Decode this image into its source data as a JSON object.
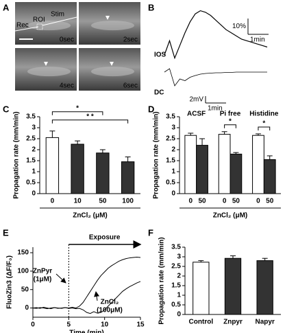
{
  "chart_data": [
    {
      "type": "image",
      "panel": "A",
      "frames": [
        "0sec",
        "2sec",
        "4sec",
        "6sec"
      ],
      "labels": [
        "Rec",
        "ROI",
        "Stim"
      ]
    },
    {
      "type": "trace",
      "panel": "B",
      "x": [
        0,
        0.25,
        0.5,
        0.75,
        1,
        1.25,
        1.5,
        1.75,
        2,
        2.25,
        2.5,
        2.75,
        3,
        3.25,
        3.5,
        3.75,
        4,
        4.25,
        4.5,
        4.75,
        5
      ],
      "series": [
        {
          "name": "IOS",
          "values": [
            0,
            9,
            -2,
            6,
            14,
            21,
            26,
            28,
            27,
            25,
            22,
            19,
            16,
            14,
            12,
            10,
            9,
            8,
            7,
            6,
            5
          ],
          "scale": {
            "value": 10,
            "label": "10%"
          },
          "time_scale": {
            "value": 1,
            "label": "1min"
          }
        },
        {
          "name": "DC",
          "values": [
            0,
            1,
            -4,
            -2,
            -2.5,
            -1.5,
            -1,
            -0.6,
            -0.4,
            -0.3,
            -0.2,
            -0.2,
            -0.1,
            -0.1,
            0,
            0,
            0,
            0,
            0,
            0,
            0
          ],
          "scale": {
            "value": 2,
            "label": "2mV"
          },
          "time_scale": {
            "value": 1,
            "label": "1min"
          }
        }
      ]
    },
    {
      "type": "bar",
      "panel": "C",
      "ylabel": "Propagation rate (mm/min)",
      "xlabel": "ZnCl₂ (μM)",
      "categories": [
        "0",
        "10",
        "50",
        "100"
      ],
      "values": [
        2.55,
        2.25,
        1.85,
        1.45
      ],
      "errors": [
        0.3,
        0.15,
        0.15,
        0.22
      ],
      "colors": [
        "#ffffff",
        "#333333",
        "#333333",
        "#333333"
      ],
      "ylim": [
        0,
        3.5
      ],
      "yticks": [
        0,
        0.5,
        1,
        1.5,
        2,
        2.5,
        3,
        3.5
      ],
      "annotations": [
        "*",
        "* *"
      ]
    },
    {
      "type": "bar",
      "panel": "D",
      "ylabel": "Propagation rate (mm/min)",
      "xlabel": "ZnCl₂ (μM)",
      "groups": [
        "ACSF",
        "Pi free",
        "Histidine"
      ],
      "categories": [
        "0",
        "50",
        "0",
        "50",
        "0",
        "50"
      ],
      "values": [
        2.65,
        2.2,
        2.7,
        1.8,
        2.65,
        1.55
      ],
      "errors": [
        0.1,
        0.3,
        0.12,
        0.07,
        0.07,
        0.17
      ],
      "colors": [
        "#ffffff",
        "#333333",
        "#ffffff",
        "#333333",
        "#ffffff",
        "#333333"
      ],
      "ylim": [
        0,
        3.5
      ],
      "yticks": [
        0,
        0.5,
        1,
        1.5,
        2,
        2.5,
        3,
        3.5
      ],
      "annotations": [
        "*",
        "*"
      ]
    },
    {
      "type": "line",
      "panel": "E",
      "xlabel": "Time (min)",
      "ylabel": "FluoZin3 (ΔF/F₀)",
      "x": [
        0,
        0.5,
        1,
        1.5,
        2,
        2.5,
        3,
        3.5,
        4,
        4.5,
        5,
        5.5,
        6,
        6.5,
        7,
        7.5,
        8,
        8.5,
        9,
        9.5,
        10,
        10.5,
        11,
        11.5,
        12,
        12.5,
        13,
        13.5,
        14,
        14.5,
        15
      ],
      "series": [
        {
          "name": "ZnPyr",
          "dose": "(1μM)",
          "color": "#000000",
          "values": [
            0,
            1,
            -1,
            2,
            0,
            -2,
            1,
            0,
            -1,
            1,
            0,
            2,
            0,
            5,
            15,
            30,
            45,
            60,
            75,
            88,
            98,
            108,
            115,
            121,
            127,
            131,
            134,
            136,
            137,
            138,
            137
          ]
        },
        {
          "name": "ZnCl₂",
          "dose": "(100μM)",
          "color": "#000000",
          "values": [
            0,
            -1,
            1,
            0,
            -2,
            0,
            1,
            -1,
            0,
            1,
            -1,
            0,
            -2,
            -1,
            -5,
            -12,
            -15,
            -10,
            -14,
            -12,
            -5,
            5,
            15,
            25,
            35,
            45,
            52,
            58,
            63,
            68,
            72
          ]
        }
      ],
      "xlim": [
        0,
        15
      ],
      "xticks": [
        0,
        5,
        10,
        15
      ],
      "ylim": [
        -25,
        165
      ],
      "yticks": [
        0,
        50,
        100,
        150
      ],
      "annotation": {
        "text": "Exposure",
        "start": 5,
        "end": 15
      }
    },
    {
      "type": "bar",
      "panel": "F",
      "ylabel": "Propagation rate (mm/min)",
      "categories": [
        "Control",
        "Znpyr",
        "Napyr"
      ],
      "values": [
        2.72,
        2.92,
        2.8
      ],
      "errors": [
        0.08,
        0.13,
        0.12
      ],
      "colors": [
        "#ffffff",
        "#333333",
        "#333333"
      ],
      "ylim": [
        0,
        3.5
      ],
      "yticks": [
        0,
        0.5,
        1,
        1.5,
        2,
        2.5,
        3,
        3.5
      ]
    }
  ]
}
